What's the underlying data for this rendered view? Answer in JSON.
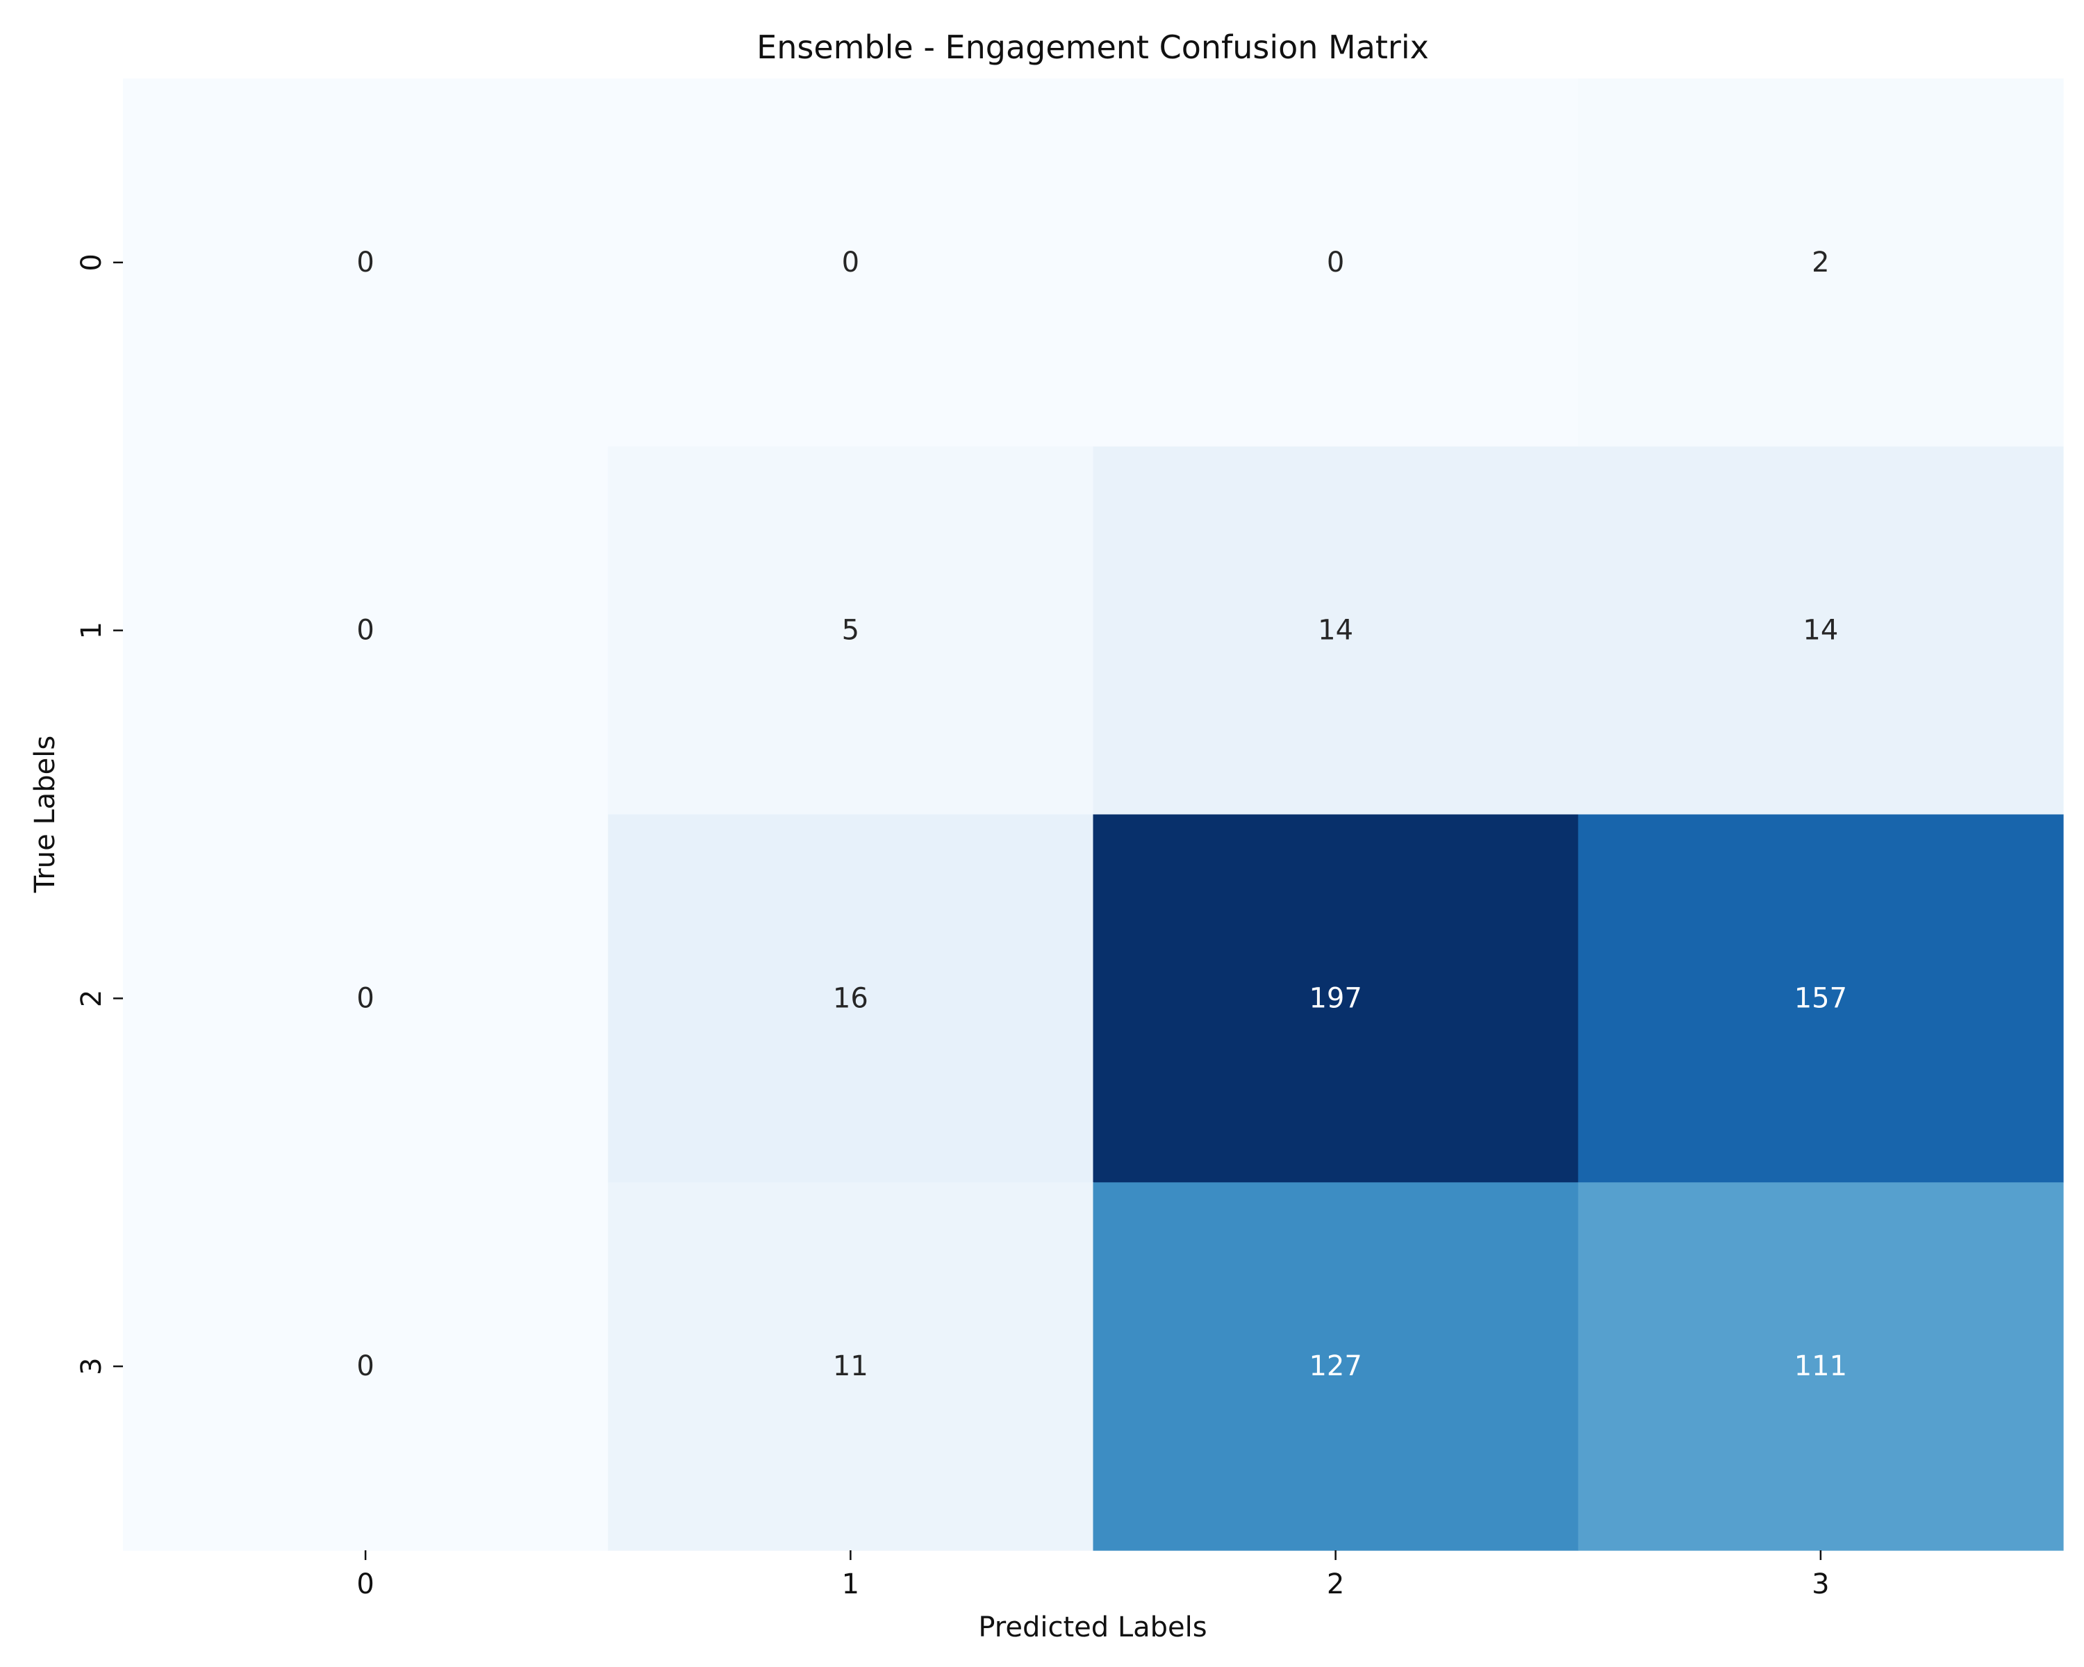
{
  "chart_data": {
    "type": "heatmap",
    "title": "Ensemble - Engagement Confusion Matrix",
    "xlabel": "Predicted Labels",
    "ylabel": "True Labels",
    "x_categories": [
      "0",
      "1",
      "2",
      "3"
    ],
    "y_categories": [
      "0",
      "1",
      "2",
      "3"
    ],
    "values": [
      [
        0,
        0,
        0,
        2
      ],
      [
        0,
        5,
        14,
        14
      ],
      [
        0,
        16,
        197,
        157
      ],
      [
        0,
        11,
        127,
        111
      ]
    ],
    "colormap": "Blues",
    "color_range": [
      0,
      197
    ],
    "colorbar": false,
    "grid": false,
    "legend": "none"
  }
}
